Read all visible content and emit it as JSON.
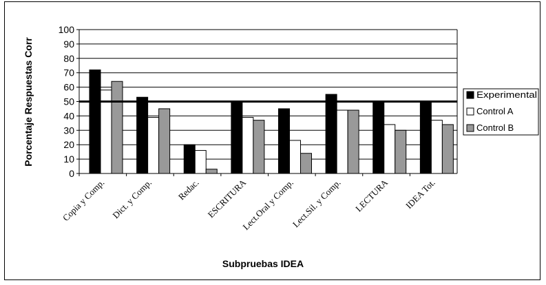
{
  "chart_data": {
    "type": "bar",
    "title": "",
    "xlabel": "Subpruebas IDEA",
    "ylabel": "Porcentaje Respuestas Corr",
    "ylim": [
      0,
      100
    ],
    "yticks": [
      "0",
      "10",
      "20",
      "30",
      "40",
      "50",
      "60",
      "70",
      "80",
      "90",
      "100"
    ],
    "grid": true,
    "legend_position": "right",
    "reference_line": 50,
    "categories": [
      "Copia y Comp.",
      "Dict. y Comp.",
      "Redac.",
      "ESCRITURA",
      "Lect.Oral y Comp.",
      "Lect.Sil. y Comp.",
      "LECTURA",
      "IDEA Tot."
    ],
    "series": [
      {
        "name": "Experimental",
        "color": "#000000",
        "values": [
          72,
          53,
          20,
          50,
          45,
          55,
          50,
          50
        ]
      },
      {
        "name": "Control A",
        "color": "#ffffff",
        "values": [
          58,
          39,
          16,
          39,
          23,
          44,
          34,
          37
        ]
      },
      {
        "name": "Control B",
        "color": "#999999",
        "values": [
          64,
          45,
          3,
          37,
          14,
          44,
          30,
          34
        ]
      }
    ]
  }
}
